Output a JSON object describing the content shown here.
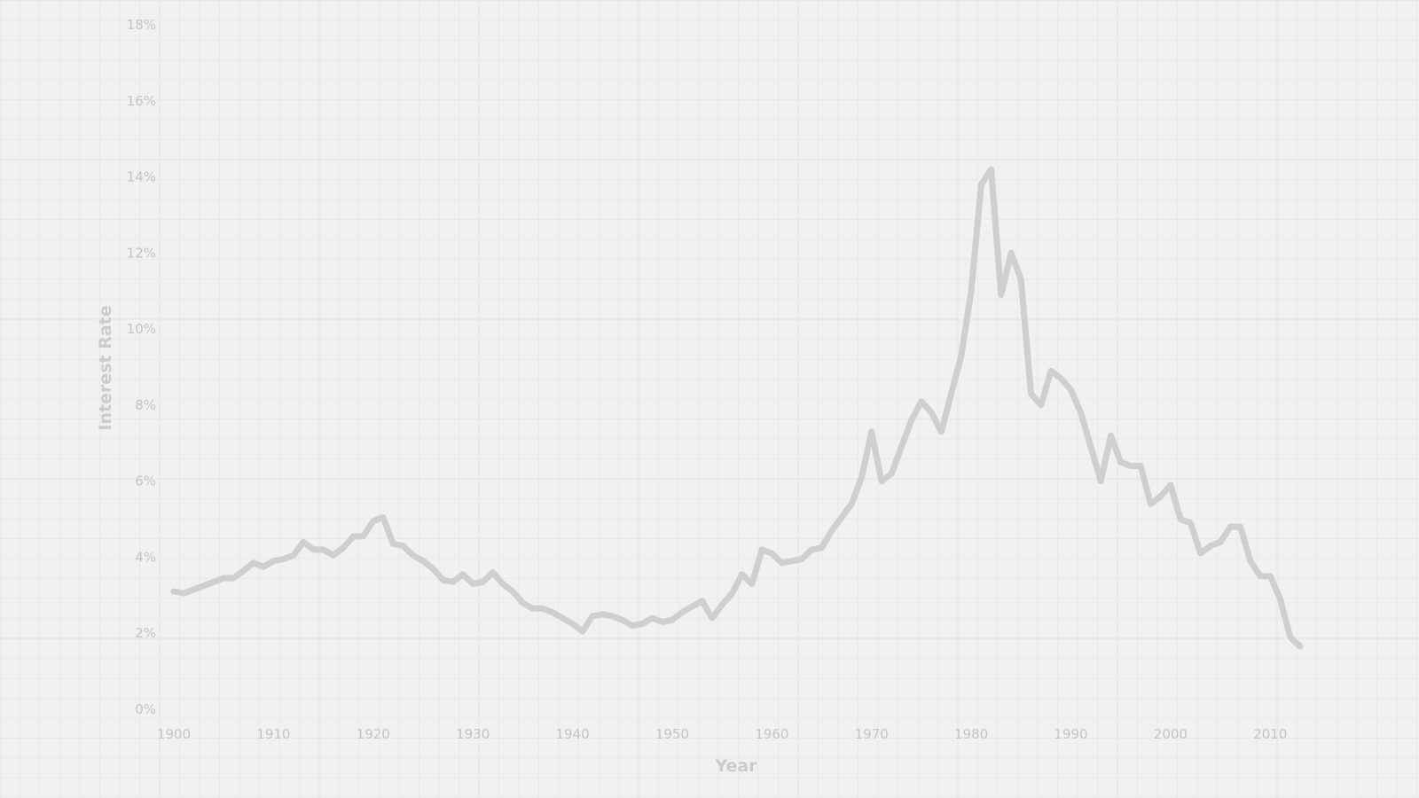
{
  "chart_data": {
    "type": "line",
    "title": "",
    "xlabel": "Year",
    "ylabel": "Interest Rate",
    "xlim": [
      1900,
      2013
    ],
    "ylim": [
      0,
      18
    ],
    "x_ticks": [
      "1900",
      "1910",
      "1920",
      "1930",
      "1940",
      "1950",
      "1960",
      "1970",
      "1980",
      "1990",
      "2000",
      "2010"
    ],
    "y_ticks": [
      "0%",
      "2%",
      "4%",
      "6%",
      "8%",
      "10%",
      "12%",
      "14%",
      "16%",
      "18%"
    ],
    "grid": true,
    "legend": "none",
    "colors": {
      "background": "#f1f1f1",
      "line": "#cfcfcf",
      "text": "#c4c4c4",
      "grid": "#e6e6e6"
    },
    "series": [
      {
        "x": [
          1900,
          1901,
          1902,
          1903,
          1904,
          1905,
          1906,
          1907,
          1908,
          1909,
          1910,
          1911,
          1912,
          1913,
          1914,
          1915,
          1916,
          1917,
          1918,
          1919,
          1920,
          1921,
          1922,
          1923,
          1924,
          1925,
          1926,
          1927,
          1928,
          1929,
          1930,
          1931,
          1932,
          1933,
          1934,
          1935,
          1936,
          1937,
          1938,
          1939,
          1940,
          1941,
          1942,
          1943,
          1944,
          1945,
          1946,
          1947,
          1948,
          1949,
          1950,
          1951,
          1952,
          1953,
          1954,
          1955,
          1956,
          1957,
          1958,
          1959,
          1960,
          1961,
          1962,
          1963,
          1964,
          1965,
          1966,
          1967,
          1968,
          1969,
          1970,
          1971,
          1972,
          1973,
          1974,
          1975,
          1976,
          1977,
          1978,
          1979,
          1980,
          1981,
          1982,
          1983,
          1984,
          1985,
          1986,
          1987,
          1988,
          1989,
          1990,
          1991,
          1992,
          1993,
          1994,
          1995,
          1996,
          1997,
          1998,
          1999,
          2000,
          2001,
          2002,
          2003,
          2004,
          2005,
          2006,
          2007,
          2008,
          2009,
          2010,
          2011,
          2012,
          2013
        ],
        "values": [
          3.1,
          3.05,
          3.15,
          3.25,
          3.35,
          3.45,
          3.45,
          3.65,
          3.85,
          3.75,
          3.9,
          3.95,
          4.05,
          4.4,
          4.2,
          4.2,
          4.05,
          4.25,
          4.55,
          4.55,
          4.95,
          5.05,
          4.35,
          4.3,
          4.05,
          3.9,
          3.7,
          3.4,
          3.35,
          3.55,
          3.3,
          3.35,
          3.6,
          3.3,
          3.1,
          2.8,
          2.65,
          2.65,
          2.55,
          2.4,
          2.25,
          2.05,
          2.45,
          2.5,
          2.45,
          2.35,
          2.2,
          2.25,
          2.4,
          2.3,
          2.35,
          2.55,
          2.7,
          2.85,
          2.4,
          2.75,
          3.05,
          3.55,
          3.3,
          4.2,
          4.1,
          3.85,
          3.9,
          3.95,
          4.2,
          4.25,
          4.7,
          5.05,
          5.4,
          6.1,
          7.3,
          6.0,
          6.2,
          6.9,
          7.6,
          8.1,
          7.8,
          7.3,
          8.3,
          9.3,
          11.0,
          13.8,
          14.2,
          10.9,
          12.0,
          11.3,
          8.3,
          8.0,
          8.9,
          8.7,
          8.4,
          7.8,
          6.9,
          6.0,
          7.2,
          6.5,
          6.4,
          6.4,
          5.4,
          5.6,
          5.9,
          5.0,
          4.9,
          4.1,
          4.3,
          4.4,
          4.8,
          4.8,
          3.9,
          3.5,
          3.5,
          2.9,
          1.9,
          1.65
        ]
      }
    ]
  }
}
